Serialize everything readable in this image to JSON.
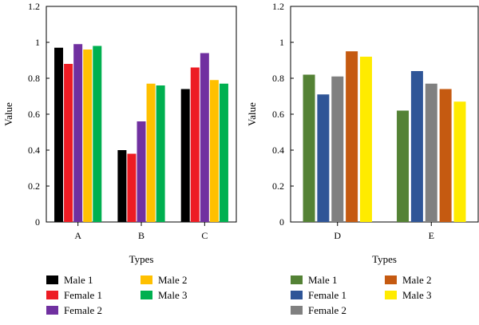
{
  "chart_data": [
    {
      "type": "bar",
      "xlabel": "Types",
      "ylabel": "Value",
      "ylim": [
        0,
        1.2
      ],
      "yticks": [
        "0",
        "0.2",
        "0.4",
        "0.6",
        "0.8",
        "1",
        "1.2"
      ],
      "categories": [
        "A",
        "B",
        "C"
      ],
      "grid": false,
      "legend": "below",
      "series": [
        {
          "name": "Male 1",
          "color": "#000000",
          "values": [
            0.97,
            0.4,
            0.74
          ]
        },
        {
          "name": "Female 1",
          "color": "#ed1c24",
          "values": [
            0.88,
            0.38,
            0.86
          ]
        },
        {
          "name": "Female 2",
          "color": "#7030a0",
          "values": [
            0.99,
            0.56,
            0.94
          ]
        },
        {
          "name": "Male 2",
          "color": "#ffc000",
          "values": [
            0.96,
            0.77,
            0.79
          ]
        },
        {
          "name": "Male 3",
          "color": "#00b050",
          "values": [
            0.98,
            0.76,
            0.77
          ]
        }
      ]
    },
    {
      "type": "bar",
      "xlabel": "Types",
      "ylabel": "Value",
      "ylim": [
        0,
        1.2
      ],
      "yticks": [
        "0",
        "0.2",
        "0.4",
        "0.6",
        "0.8",
        "1",
        "1.2"
      ],
      "categories": [
        "D",
        "E"
      ],
      "grid": false,
      "legend": "below",
      "series": [
        {
          "name": "Male 1",
          "color": "#548235",
          "values": [
            0.82,
            0.62
          ]
        },
        {
          "name": "Female 1",
          "color": "#2f5597",
          "values": [
            0.71,
            0.84
          ]
        },
        {
          "name": "Female 2",
          "color": "#808080",
          "values": [
            0.81,
            0.77
          ]
        },
        {
          "name": "Male 2",
          "color": "#c55a11",
          "values": [
            0.95,
            0.74
          ]
        },
        {
          "name": "Male 3",
          "color": "#ffeb00",
          "values": [
            0.92,
            0.67
          ]
        }
      ]
    }
  ]
}
